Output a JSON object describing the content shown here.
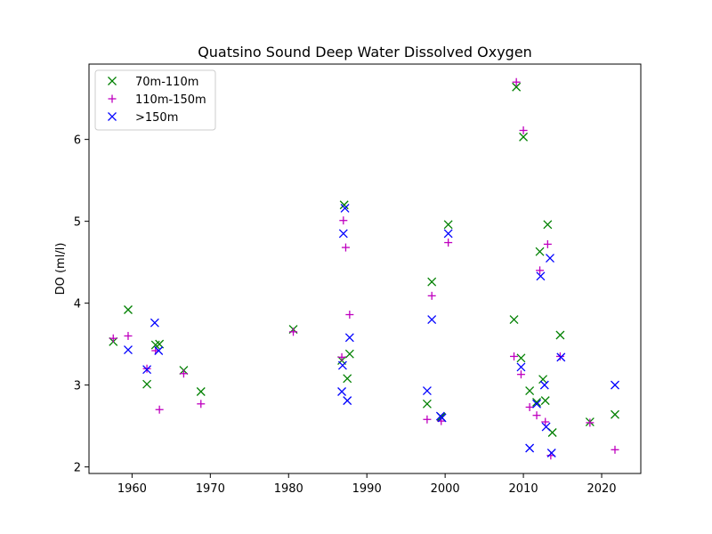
{
  "chart_data": {
    "type": "scatter",
    "title": "Quatsino Sound Deep Water Dissolved Oxygen",
    "xlabel": "",
    "ylabel": "DO (ml/l)",
    "xlim": [
      1954.5,
      2025
    ],
    "ylim": [
      1.92,
      6.92
    ],
    "xticks": [
      1960,
      1970,
      1980,
      1990,
      2000,
      2010,
      2020
    ],
    "yticks": [
      2,
      3,
      4,
      5,
      6
    ],
    "grid": false,
    "legend_position": "top-left",
    "series": [
      {
        "name": "70m-110m",
        "marker": "x",
        "color": "#008000",
        "x": [
          1957.6,
          1959.5,
          1961.9,
          1963.0,
          1963.5,
          1966.6,
          1968.8,
          1980.6,
          1986.8,
          1987.1,
          1987.5,
          1987.8,
          1997.7,
          1998.3,
          1999.5,
          2000.4,
          2008.8,
          2009.1,
          2009.7,
          2010.0,
          2010.8,
          2011.7,
          2012.1,
          2012.5,
          2012.8,
          2013.1,
          2013.7,
          2014.7,
          2018.5,
          2021.7
        ],
        "y": [
          3.53,
          3.92,
          3.01,
          3.49,
          3.5,
          3.18,
          2.92,
          3.68,
          3.3,
          5.2,
          3.08,
          3.38,
          2.77,
          4.26,
          2.61,
          4.96,
          3.8,
          6.64,
          3.33,
          6.03,
          2.93,
          2.79,
          4.63,
          3.07,
          2.81,
          4.96,
          2.42,
          3.61,
          2.55,
          2.64
        ]
      },
      {
        "name": "110m-150m",
        "marker": "+",
        "color": "#bf00bf",
        "x": [
          1957.6,
          1959.5,
          1961.9,
          1963.0,
          1963.5,
          1966.6,
          1968.8,
          1980.6,
          1986.8,
          1987.0,
          1987.3,
          1987.8,
          1997.7,
          1998.3,
          1999.5,
          2000.4,
          2008.8,
          2009.1,
          2009.7,
          2010.0,
          2010.8,
          2011.7,
          2012.1,
          2012.8,
          2013.1,
          2013.5,
          2014.7,
          2018.5,
          2021.7
        ],
        "y": [
          3.57,
          3.6,
          3.2,
          3.42,
          2.7,
          3.14,
          2.77,
          3.65,
          3.34,
          5.01,
          4.68,
          3.86,
          2.58,
          4.09,
          2.56,
          4.74,
          3.35,
          6.7,
          3.13,
          6.11,
          2.73,
          2.63,
          4.4,
          2.55,
          4.72,
          2.14,
          3.35,
          2.54,
          2.21
        ]
      },
      {
        "name": ">150m",
        "marker": "x",
        "color": "#0000ff",
        "x": [
          1959.5,
          1961.9,
          1962.9,
          1963.4,
          1986.8,
          1986.9,
          1987.0,
          1987.2,
          1987.5,
          1987.8,
          1997.7,
          1998.3,
          1999.4,
          1999.6,
          2000.4,
          2009.7,
          2010.8,
          2011.7,
          2012.2,
          2012.7,
          2012.9,
          2013.4,
          2013.6,
          2014.8,
          2021.7
        ],
        "y": [
          3.43,
          3.19,
          3.76,
          3.42,
          2.92,
          3.24,
          4.85,
          5.16,
          2.81,
          3.58,
          2.93,
          3.8,
          2.62,
          2.6,
          4.85,
          3.22,
          2.23,
          2.77,
          4.33,
          3.0,
          2.49,
          4.55,
          2.17,
          3.34,
          3.0
        ]
      }
    ]
  }
}
